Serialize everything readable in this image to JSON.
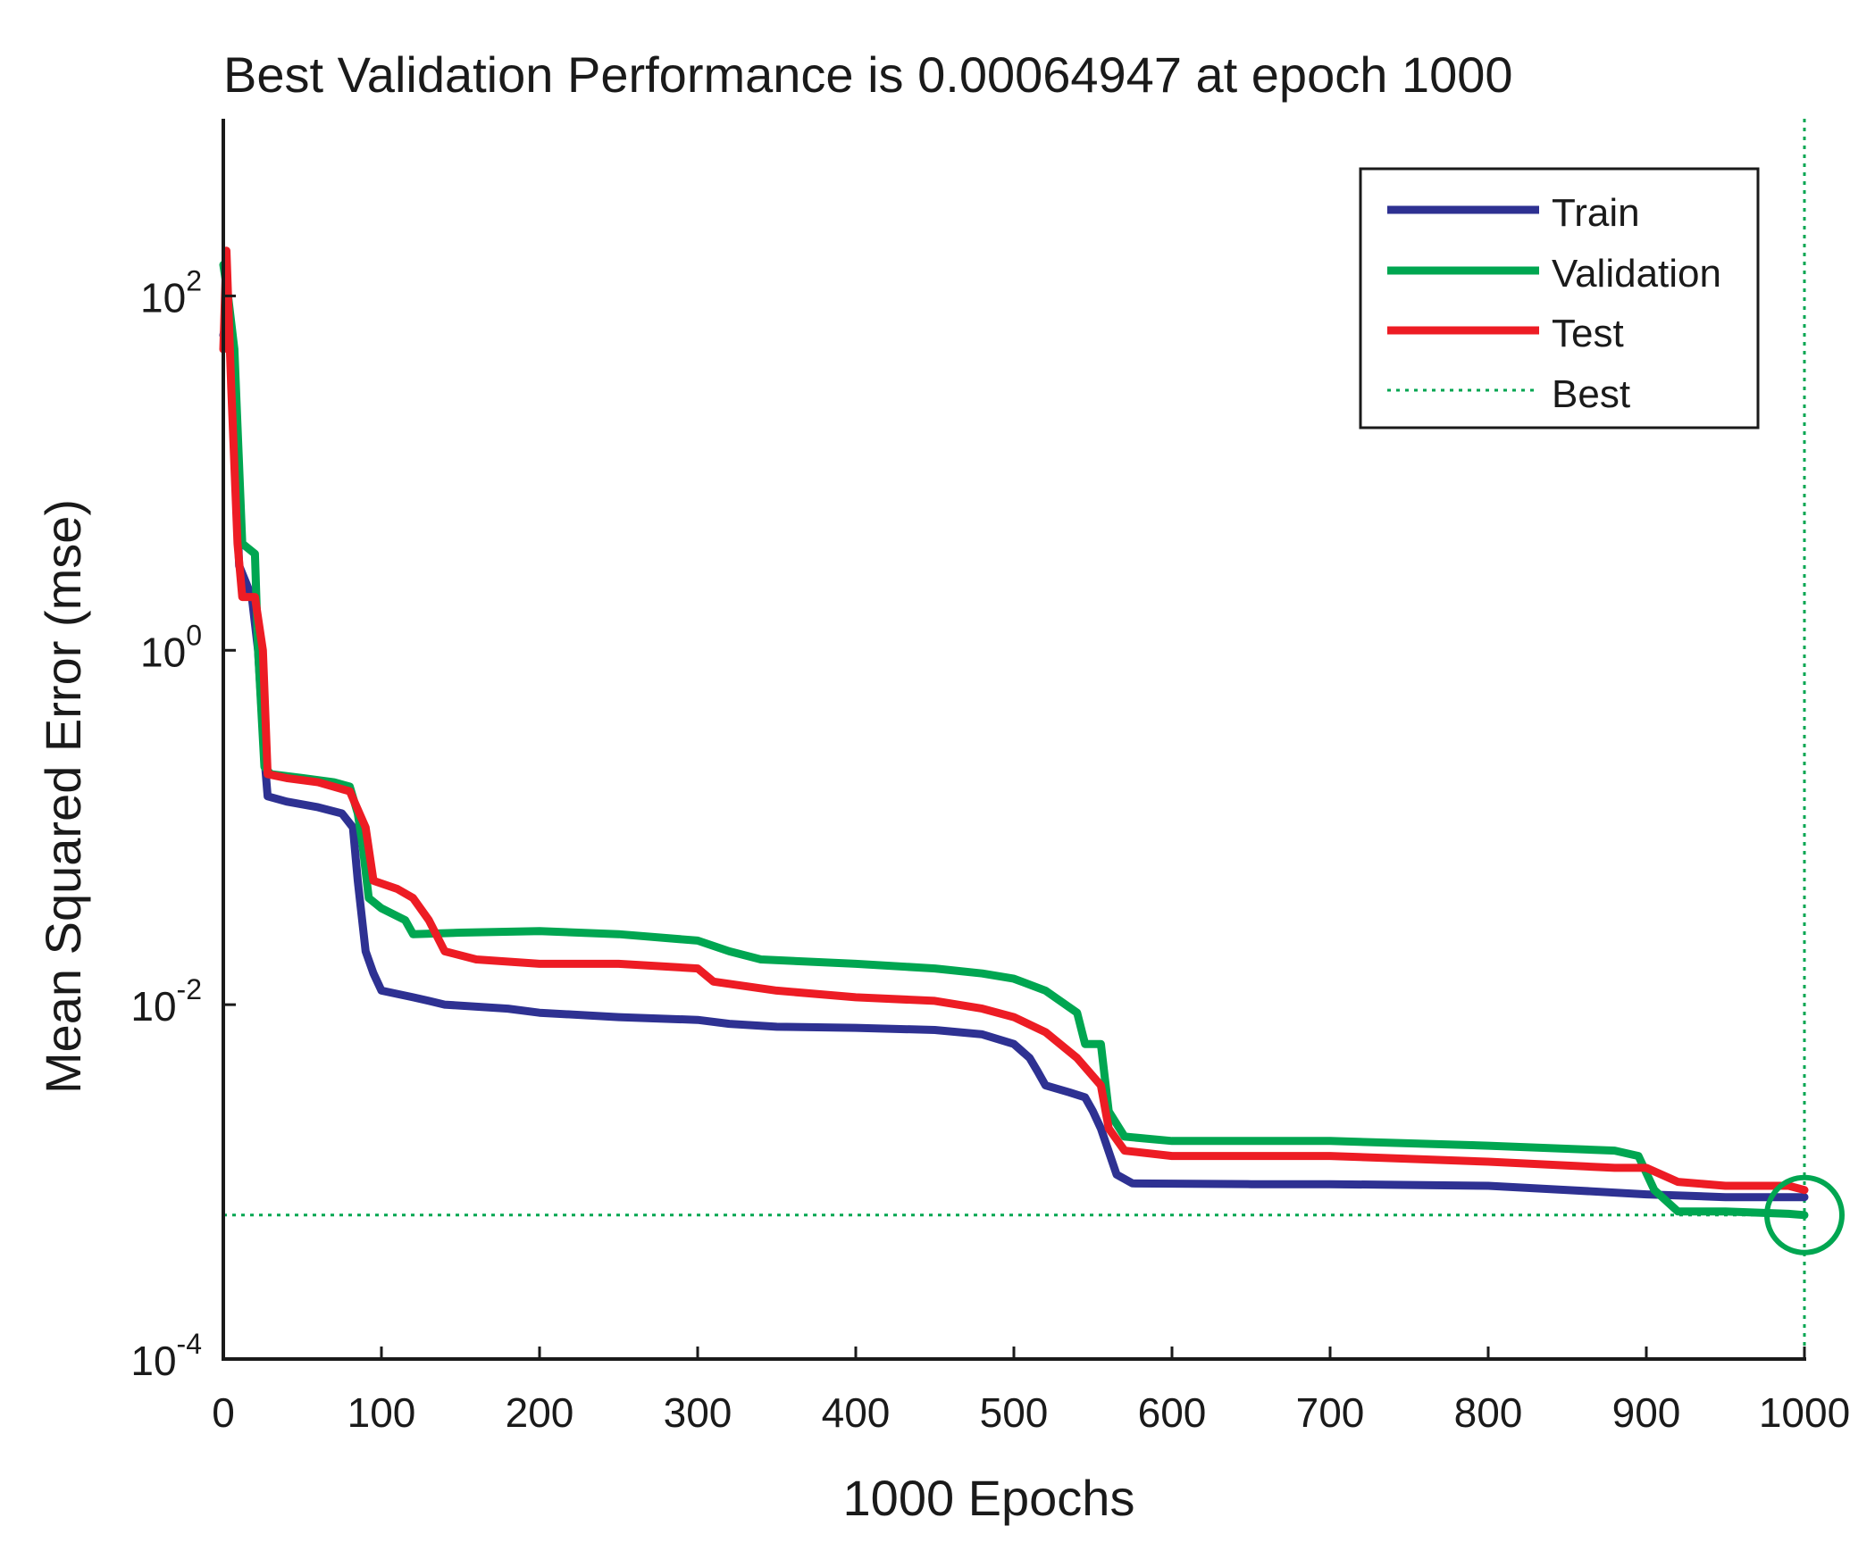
{
  "chart_data": {
    "type": "line",
    "title": "Best Validation Performance is 0.00064947 at epoch 1000",
    "xlabel": "1000 Epochs",
    "ylabel": "Mean Squared Error  (mse)",
    "yscale": "log",
    "xlim": [
      0,
      1000
    ],
    "ylim": [
      0.0001,
      1000
    ],
    "xticks": [
      0,
      100,
      200,
      300,
      400,
      500,
      600,
      700,
      800,
      900,
      1000
    ],
    "yticks": [
      {
        "value": 0.0001,
        "base": "10",
        "exp": "-4"
      },
      {
        "value": 0.01,
        "base": "10",
        "exp": "-2"
      },
      {
        "value": 1,
        "base": "10",
        "exp": "0"
      },
      {
        "value": 100,
        "base": "10",
        "exp": "2"
      }
    ],
    "legend_position": "top-right",
    "series": [
      {
        "name": "Train",
        "color": "#2e3192",
        "points": [
          [
            0,
            60
          ],
          [
            3,
            80
          ],
          [
            6,
            30
          ],
          [
            10,
            3
          ],
          [
            18,
            2
          ],
          [
            22,
            1
          ],
          [
            26,
            0.25
          ],
          [
            28,
            0.15
          ],
          [
            40,
            0.14
          ],
          [
            60,
            0.13
          ],
          [
            75,
            0.12
          ],
          [
            82,
            0.1
          ],
          [
            85,
            0.05
          ],
          [
            90,
            0.02
          ],
          [
            95,
            0.015
          ],
          [
            100,
            0.012
          ],
          [
            120,
            0.011
          ],
          [
            130,
            0.0105
          ],
          [
            140,
            0.01
          ],
          [
            180,
            0.0095
          ],
          [
            200,
            0.009
          ],
          [
            250,
            0.0085
          ],
          [
            300,
            0.0082
          ],
          [
            320,
            0.0078
          ],
          [
            350,
            0.0075
          ],
          [
            400,
            0.0074
          ],
          [
            450,
            0.0072
          ],
          [
            480,
            0.0068
          ],
          [
            500,
            0.006
          ],
          [
            510,
            0.005
          ],
          [
            515,
            0.0042
          ],
          [
            520,
            0.0035
          ],
          [
            535,
            0.0032
          ],
          [
            545,
            0.003
          ],
          [
            550,
            0.0025
          ],
          [
            555,
            0.002
          ],
          [
            565,
            0.0011
          ],
          [
            575,
            0.00098
          ],
          [
            650,
            0.00097
          ],
          [
            700,
            0.00097
          ],
          [
            800,
            0.00095
          ],
          [
            850,
            0.0009
          ],
          [
            900,
            0.00085
          ],
          [
            950,
            0.00082
          ],
          [
            1000,
            0.00082
          ]
        ]
      },
      {
        "name": "Validation",
        "color": "#00a651",
        "points": [
          [
            0,
            150
          ],
          [
            3,
            100
          ],
          [
            7,
            50
          ],
          [
            12,
            4
          ],
          [
            20,
            3.5
          ],
          [
            22,
            1
          ],
          [
            26,
            0.22
          ],
          [
            30,
            0.2
          ],
          [
            50,
            0.19
          ],
          [
            70,
            0.18
          ],
          [
            80,
            0.17
          ],
          [
            85,
            0.12
          ],
          [
            88,
            0.08
          ],
          [
            92,
            0.04
          ],
          [
            100,
            0.035
          ],
          [
            115,
            0.03
          ],
          [
            120,
            0.025
          ],
          [
            150,
            0.0255
          ],
          [
            200,
            0.026
          ],
          [
            250,
            0.025
          ],
          [
            300,
            0.023
          ],
          [
            320,
            0.02
          ],
          [
            340,
            0.018
          ],
          [
            400,
            0.017
          ],
          [
            450,
            0.016
          ],
          [
            480,
            0.015
          ],
          [
            500,
            0.014
          ],
          [
            520,
            0.012
          ],
          [
            540,
            0.009
          ],
          [
            545,
            0.006
          ],
          [
            555,
            0.006
          ],
          [
            560,
            0.0025
          ],
          [
            570,
            0.0018
          ],
          [
            600,
            0.0017
          ],
          [
            700,
            0.0017
          ],
          [
            800,
            0.0016
          ],
          [
            880,
            0.0015
          ],
          [
            895,
            0.0014
          ],
          [
            905,
            0.0009
          ],
          [
            920,
            0.00068
          ],
          [
            950,
            0.00068
          ],
          [
            990,
            0.00066
          ],
          [
            1000,
            0.00064947
          ]
        ]
      },
      {
        "name": "Test",
        "color": "#ed1c24",
        "points": [
          [
            0,
            50
          ],
          [
            2,
            180
          ],
          [
            5,
            30
          ],
          [
            9,
            4
          ],
          [
            12,
            2
          ],
          [
            20,
            2
          ],
          [
            25,
            1
          ],
          [
            28,
            0.2
          ],
          [
            40,
            0.19
          ],
          [
            60,
            0.18
          ],
          [
            80,
            0.16
          ],
          [
            90,
            0.1
          ],
          [
            95,
            0.05
          ],
          [
            110,
            0.045
          ],
          [
            120,
            0.04
          ],
          [
            130,
            0.03
          ],
          [
            140,
            0.02
          ],
          [
            160,
            0.018
          ],
          [
            200,
            0.017
          ],
          [
            250,
            0.017
          ],
          [
            300,
            0.016
          ],
          [
            310,
            0.0135
          ],
          [
            350,
            0.012
          ],
          [
            400,
            0.011
          ],
          [
            450,
            0.0105
          ],
          [
            480,
            0.0095
          ],
          [
            500,
            0.0085
          ],
          [
            520,
            0.007
          ],
          [
            540,
            0.005
          ],
          [
            555,
            0.0035
          ],
          [
            560,
            0.002
          ],
          [
            570,
            0.0015
          ],
          [
            600,
            0.0014
          ],
          [
            700,
            0.0014
          ],
          [
            800,
            0.0013
          ],
          [
            880,
            0.0012
          ],
          [
            900,
            0.0012
          ],
          [
            920,
            0.001
          ],
          [
            950,
            0.00095
          ],
          [
            990,
            0.00095
          ],
          [
            1000,
            0.0009
          ]
        ]
      }
    ],
    "best": {
      "label": "Best",
      "epoch": 1000,
      "value": 0.00064947,
      "color": "#00a651"
    }
  }
}
